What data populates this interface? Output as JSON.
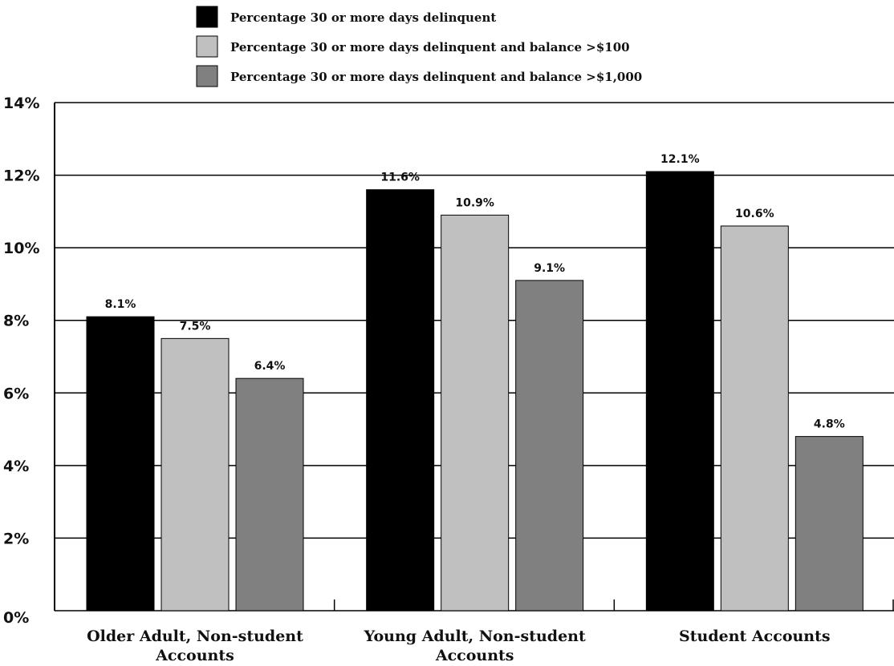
{
  "chart_data": {
    "type": "bar",
    "categories": [
      [
        "Older Adult, Non-student",
        "Accounts"
      ],
      [
        "Young Adult, Non-student",
        "Accounts"
      ],
      [
        "Student Accounts"
      ]
    ],
    "series": [
      {
        "name": "Percentage 30 or more days delinquent",
        "color": "#000000",
        "values": [
          8.1,
          11.6,
          12.1
        ]
      },
      {
        "name": "Percentage 30 or more days delinquent and balance >$100",
        "color": "#c0c0c0",
        "values": [
          7.5,
          10.9,
          10.6
        ]
      },
      {
        "name": "Percentage 30 or more days delinquent and balance >$1,000",
        "color": "#808080",
        "values": [
          6.4,
          9.1,
          4.8
        ]
      }
    ],
    "data_labels": [
      [
        "8.1%",
        "11.6%",
        "12.1%"
      ],
      [
        "7.5%",
        "10.9%",
        "10.6%"
      ],
      [
        "6.4%",
        "9.1%",
        "4.8%"
      ]
    ],
    "y_ticks": [
      0,
      2,
      4,
      6,
      8,
      10,
      12,
      14
    ],
    "y_tick_labels": [
      "0%",
      "2%",
      "4%",
      "6%",
      "8%",
      "10%",
      "12%",
      "14%"
    ],
    "ylim": [
      0,
      14
    ],
    "grid": true,
    "legend_position": "top-center",
    "title": "",
    "xlabel": "",
    "ylabel": ""
  }
}
